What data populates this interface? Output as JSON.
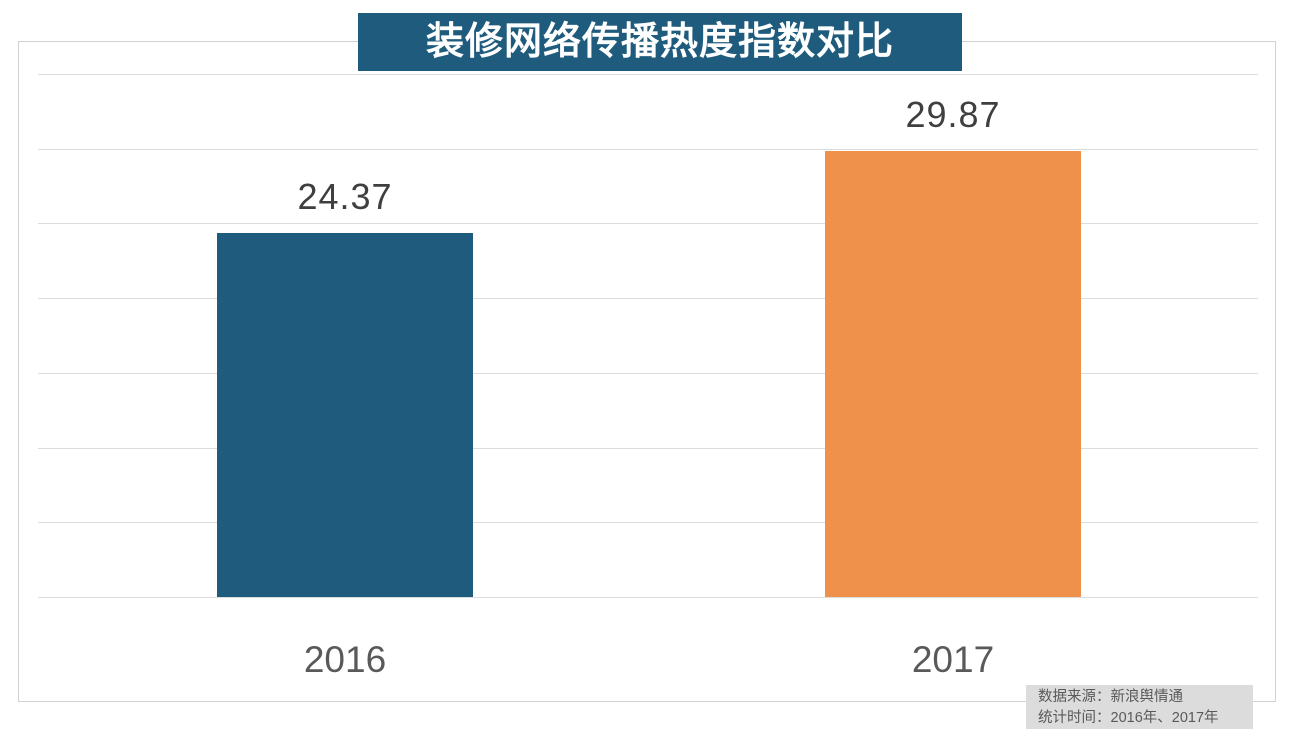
{
  "title": {
    "text": "装修网络传播热度指数对比",
    "bg_color": "#1E5B7D",
    "text_color": "#FFFFFF"
  },
  "chart_data": {
    "type": "bar",
    "categories": [
      "2016",
      "2017"
    ],
    "values": [
      24.37,
      29.87
    ],
    "value_labels": [
      "24.37",
      "29.87"
    ],
    "series_colors": [
      "#1E5B7D",
      "#EF914A"
    ],
    "title": "装修网络传播热度指数对比",
    "xlabel": "",
    "ylabel": "",
    "ylim": [
      0,
      35
    ],
    "grid_step": 5,
    "grid": true,
    "legend": "none",
    "gridline_color": "#DCDCDC",
    "value_label_color": "#3F3F3F",
    "category_label_color": "#595959"
  },
  "source_note": {
    "line1": "数据来源：新浪舆情通",
    "line2": "统计时间：2016年、2017年",
    "bg_color": "#DCDCDC",
    "text_color": "#595959"
  }
}
